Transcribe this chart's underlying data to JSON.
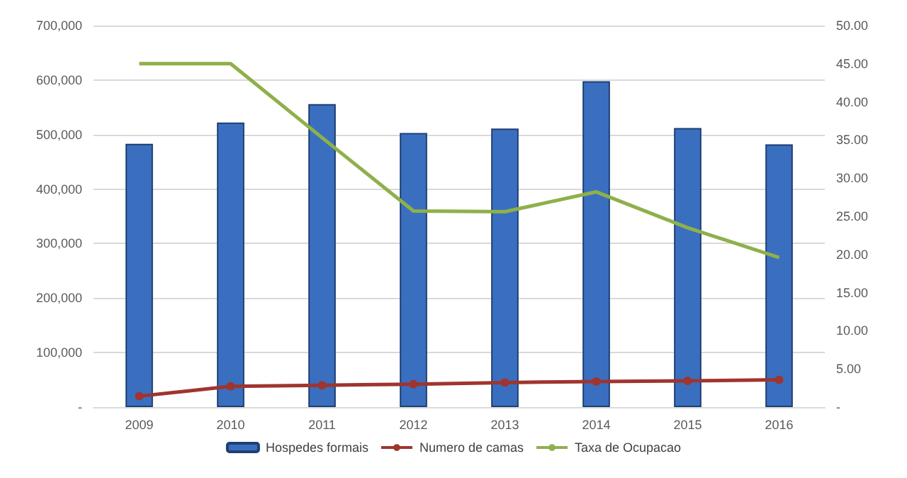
{
  "chart_data": {
    "type": "bar",
    "categories": [
      "2009",
      "2010",
      "2011",
      "2012",
      "2013",
      "2014",
      "2015",
      "2016"
    ],
    "series": [
      {
        "name": "Hospedes formais",
        "color": "#3a6fc0",
        "values": [
          483000,
          522000,
          556000,
          503000,
          511000,
          598000,
          512000,
          482000
        ]
      },
      {
        "name": "Numero de camas",
        "type": "line",
        "color": "#a0342e",
        "marker": "circle",
        "values": [
          20000,
          38000,
          40000,
          42000,
          45000,
          47000,
          48000,
          50000
        ]
      },
      {
        "name": "Taxa de Ocupacao",
        "type": "line",
        "color": "#8fb04a",
        "marker": "none",
        "axis": "y2",
        "values": [
          45.0,
          45.0,
          35.3,
          25.7,
          25.6,
          28.2,
          23.5,
          19.6
        ]
      }
    ],
    "ylim": [
      0,
      700000
    ],
    "yticks": [
      {
        "value": 0,
        "label": "-"
      },
      {
        "value": 100000,
        "label": "100,000"
      },
      {
        "value": 200000,
        "label": "200,000"
      },
      {
        "value": 300000,
        "label": "300,000"
      },
      {
        "value": 400000,
        "label": "400,000"
      },
      {
        "value": 500000,
        "label": "500,000"
      },
      {
        "value": 600000,
        "label": "600,000"
      },
      {
        "value": 700000,
        "label": "700,000"
      }
    ],
    "y2lim": [
      0,
      50
    ],
    "y2ticks": [
      {
        "value": 0,
        "label": "-"
      },
      {
        "value": 5,
        "label": "5.00"
      },
      {
        "value": 10,
        "label": "10.00"
      },
      {
        "value": 15,
        "label": "15.00"
      },
      {
        "value": 20,
        "label": "20.00"
      },
      {
        "value": 25,
        "label": "25.00"
      },
      {
        "value": 30,
        "label": "30.00"
      },
      {
        "value": 35,
        "label": "35.00"
      },
      {
        "value": 40,
        "label": "40.00"
      },
      {
        "value": 45,
        "label": "45.00"
      },
      {
        "value": 50,
        "label": "50.00"
      }
    ],
    "grid": "y",
    "legend": "bottom"
  }
}
